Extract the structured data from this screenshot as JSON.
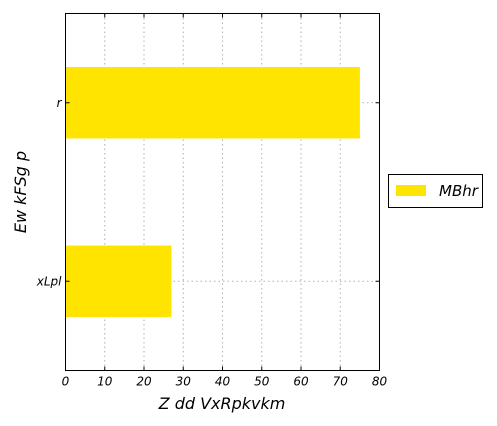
{
  "chart_data": {
    "type": "bar",
    "orientation": "horizontal",
    "categories": [
      "r",
      "xLpl"
    ],
    "series": [
      {
        "name": "MBhr",
        "values": [
          75,
          27
        ],
        "color": "#ffe400"
      }
    ],
    "xlabel": "Z dd VxRpkvkm",
    "ylabel": "Ew  kFSg p",
    "xlim": [
      0,
      80
    ],
    "xticks": [
      "0",
      "10",
      "20",
      "30",
      "40",
      "50",
      "60",
      "70",
      "80"
    ],
    "grid": true,
    "grid_style": "dotted",
    "legend_position": "right, outside plot"
  }
}
